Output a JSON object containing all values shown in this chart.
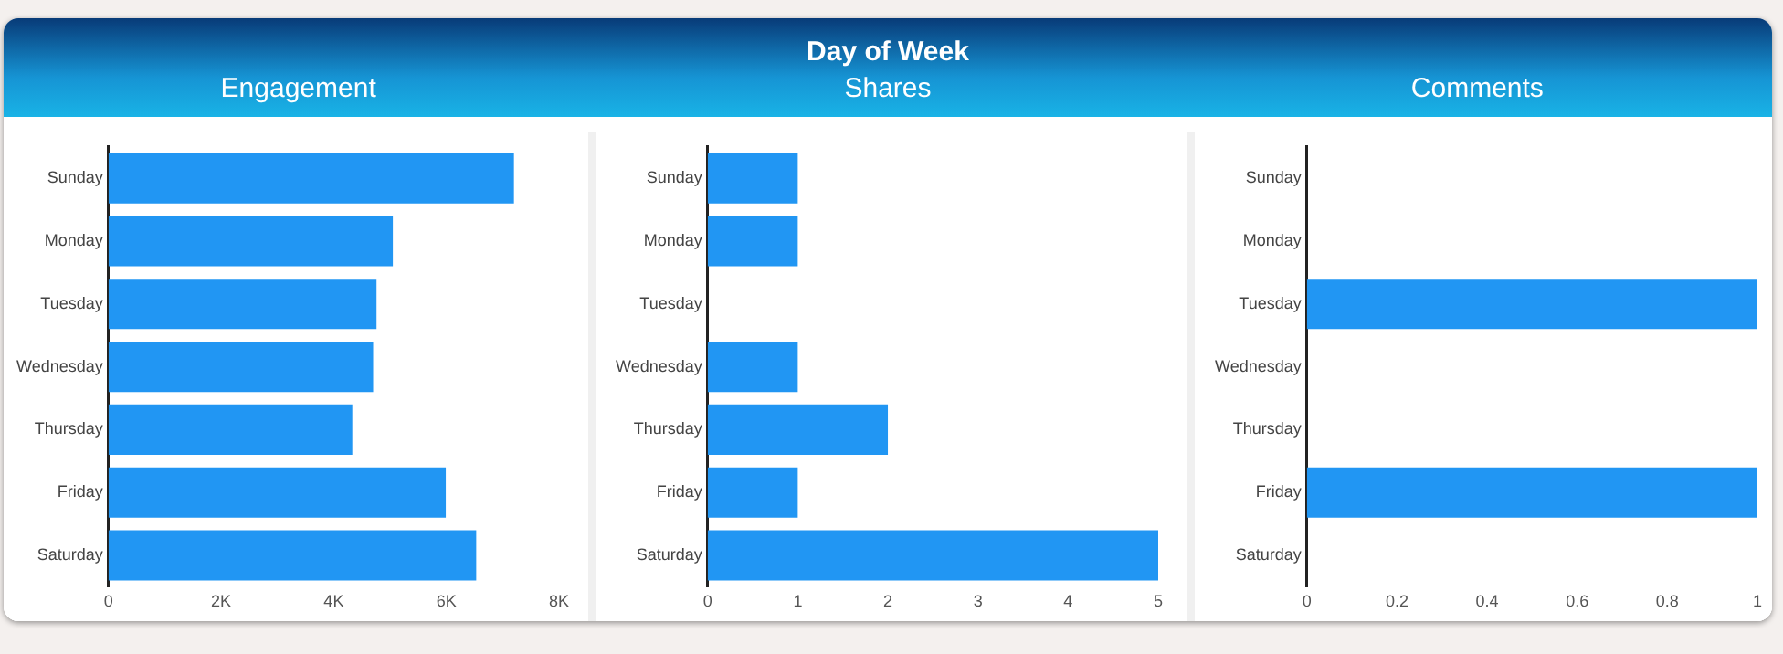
{
  "chart_data": [
    {
      "type": "bar",
      "subtitle": "Engagement",
      "orientation": "horizontal",
      "categories": [
        "Sunday",
        "Monday",
        "Tuesday",
        "Wednesday",
        "Thursday",
        "Friday",
        "Saturday"
      ],
      "color": "#2196f3",
      "values": [
        7200,
        5050,
        4760,
        4700,
        4330,
        5990,
        6530
      ],
      "xlim": [
        0,
        8000
      ],
      "xticks": [
        0,
        {
          "value": 2000,
          "label": "2K"
        },
        {
          "value": 4000,
          "label": "4K"
        },
        {
          "value": 6000,
          "label": "6K"
        },
        {
          "value": 8000,
          "label": "8K"
        }
      ],
      "grid": false,
      "legend": false
    },
    {
      "type": "bar",
      "title": "Day of Week",
      "subtitle": "Shares",
      "orientation": "horizontal",
      "categories": [
        "Sunday",
        "Monday",
        "Tuesday",
        "Wednesday",
        "Thursday",
        "Friday",
        "Saturday"
      ],
      "color": "#2196f3",
      "values": [
        1,
        1,
        0,
        1,
        2,
        1,
        5
      ],
      "xlim": [
        0,
        5
      ],
      "xticks": [
        0,
        1,
        2,
        3,
        4,
        5
      ],
      "grid": false,
      "legend": false
    },
    {
      "type": "bar",
      "subtitle": "Comments",
      "orientation": "horizontal",
      "categories": [
        "Sunday",
        "Monday",
        "Tuesday",
        "Wednesday",
        "Thursday",
        "Friday",
        "Saturday"
      ],
      "color": "#2196f3",
      "values": [
        0,
        0,
        1,
        0,
        0,
        1,
        0
      ],
      "xlim": [
        0,
        1
      ],
      "xticks": [
        0,
        0.2,
        0.4,
        0.6,
        0.8,
        1
      ],
      "grid": false,
      "legend": false
    }
  ]
}
